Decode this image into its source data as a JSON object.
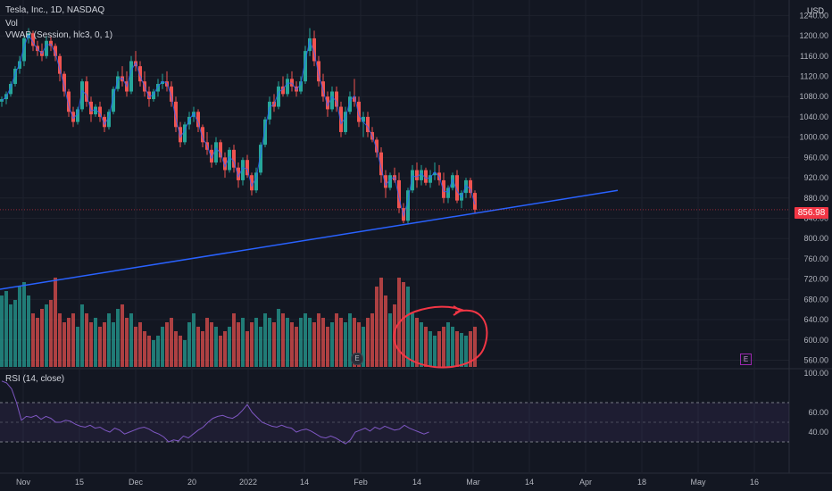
{
  "header": {
    "ticker_title": "Tesla, Inc., 1D, NASDAQ",
    "vol_title": "Vol",
    "vwap_title": "VWAP (Session, hlc3, 0, 1)",
    "currency": "USD"
  },
  "last_price_label": "856.98",
  "earnings_marker": "E",
  "dividend_marker": "E",
  "rsi": {
    "title": "RSI (14, close)",
    "ticks": [
      "100.00",
      "60.00",
      "40.00"
    ],
    "upper_band": 70,
    "lower_band": 30,
    "ylim": [
      0,
      100
    ],
    "values": [
      92,
      90,
      84,
      70,
      52,
      56,
      55,
      57,
      53,
      56,
      54,
      50,
      50,
      52,
      51,
      48,
      46,
      45,
      47,
      44,
      45,
      42,
      40,
      44,
      42,
      38,
      40,
      42,
      44,
      45,
      43,
      40,
      38,
      35,
      30,
      32,
      31,
      36,
      34,
      38,
      42,
      45,
      50,
      54,
      56,
      57,
      55,
      54,
      57,
      62,
      68,
      60,
      55,
      50,
      48,
      46,
      45,
      47,
      45,
      44,
      40,
      42,
      43,
      41,
      38,
      35,
      34,
      36,
      34,
      31,
      28,
      32,
      40,
      42,
      44,
      41,
      45,
      43,
      46,
      44,
      42,
      43,
      47,
      44,
      42,
      40,
      38,
      40
    ]
  },
  "colors": {
    "background": "#131722",
    "up": "#26a69a",
    "down": "#ef5350",
    "trendline": "#2962ff",
    "vwap": "#2962ff",
    "rsi_line": "#7e57c2",
    "rsi_band": "#7e57c2",
    "annotation": "#f23645",
    "grid": "#1e222d"
  },
  "chart_data": {
    "type": "candlestick",
    "title": "Tesla, Inc., 1D, NASDAQ",
    "x_ticks": [
      "Nov",
      "15",
      "Dec",
      "20",
      "2022",
      "14",
      "Feb",
      "14",
      "Mar",
      "14",
      "Apr",
      "18",
      "May",
      "16"
    ],
    "y_ticks": [
      1240,
      1200,
      1160,
      1120,
      1080,
      1040,
      1000,
      960,
      920,
      880,
      840,
      800,
      760,
      720,
      680,
      640,
      600,
      560
    ],
    "ylim": [
      545,
      1260
    ],
    "last_price": 856.98,
    "trendline": {
      "start": [
        "2021-10-27",
        700
      ],
      "end": [
        "2022-04-01",
        895
      ]
    },
    "candles": [
      [
        1070,
        1080,
        1060,
        1075
      ],
      [
        1075,
        1090,
        1065,
        1085
      ],
      [
        1085,
        1110,
        1080,
        1105
      ],
      [
        1105,
        1140,
        1100,
        1135
      ],
      [
        1135,
        1160,
        1125,
        1150
      ],
      [
        1150,
        1200,
        1140,
        1195
      ],
      [
        1195,
        1215,
        1185,
        1205
      ],
      [
        1205,
        1210,
        1170,
        1180
      ],
      [
        1180,
        1190,
        1160,
        1170
      ],
      [
        1170,
        1185,
        1150,
        1160
      ],
      [
        1160,
        1200,
        1155,
        1190
      ],
      [
        1190,
        1200,
        1170,
        1180
      ],
      [
        1180,
        1185,
        1150,
        1160
      ],
      [
        1160,
        1165,
        1110,
        1125
      ],
      [
        1125,
        1130,
        1080,
        1090
      ],
      [
        1090,
        1095,
        1040,
        1050
      ],
      [
        1050,
        1060,
        1020,
        1030
      ],
      [
        1030,
        1060,
        1025,
        1055
      ],
      [
        1055,
        1115,
        1050,
        1110
      ],
      [
        1110,
        1120,
        1060,
        1070
      ],
      [
        1070,
        1080,
        1030,
        1045
      ],
      [
        1045,
        1065,
        1040,
        1060
      ],
      [
        1060,
        1070,
        1030,
        1040
      ],
      [
        1040,
        1045,
        1010,
        1020
      ],
      [
        1020,
        1055,
        1015,
        1050
      ],
      [
        1050,
        1100,
        1045,
        1095
      ],
      [
        1095,
        1130,
        1090,
        1120
      ],
      [
        1120,
        1140,
        1100,
        1110
      ],
      [
        1110,
        1130,
        1080,
        1090
      ],
      [
        1090,
        1160,
        1085,
        1150
      ],
      [
        1150,
        1170,
        1130,
        1140
      ],
      [
        1140,
        1150,
        1100,
        1110
      ],
      [
        1110,
        1130,
        1080,
        1090
      ],
      [
        1090,
        1100,
        1060,
        1075
      ],
      [
        1075,
        1095,
        1070,
        1090
      ],
      [
        1090,
        1115,
        1080,
        1105
      ],
      [
        1105,
        1125,
        1095,
        1110
      ],
      [
        1110,
        1130,
        1090,
        1100
      ],
      [
        1100,
        1110,
        1060,
        1070
      ],
      [
        1070,
        1080,
        1010,
        1020
      ],
      [
        1020,
        1030,
        980,
        990
      ],
      [
        990,
        1030,
        985,
        1025
      ],
      [
        1025,
        1050,
        1015,
        1040
      ],
      [
        1040,
        1060,
        1030,
        1050
      ],
      [
        1050,
        1055,
        1010,
        1020
      ],
      [
        1020,
        1025,
        980,
        990
      ],
      [
        990,
        1010,
        965,
        975
      ],
      [
        975,
        985,
        940,
        950
      ],
      [
        950,
        1000,
        945,
        990
      ],
      [
        990,
        995,
        950,
        960
      ],
      [
        960,
        970,
        920,
        935
      ],
      [
        935,
        980,
        930,
        975
      ],
      [
        975,
        985,
        930,
        940
      ],
      [
        940,
        950,
        900,
        915
      ],
      [
        915,
        960,
        905,
        955
      ],
      [
        955,
        965,
        920,
        925
      ],
      [
        925,
        930,
        885,
        895
      ],
      [
        895,
        940,
        890,
        930
      ],
      [
        930,
        990,
        925,
        985
      ],
      [
        985,
        1040,
        980,
        1035
      ],
      [
        1035,
        1080,
        1025,
        1070
      ],
      [
        1070,
        1085,
        1050,
        1060
      ],
      [
        1060,
        1110,
        1055,
        1100
      ],
      [
        1100,
        1120,
        1080,
        1085
      ],
      [
        1085,
        1125,
        1080,
        1115
      ],
      [
        1115,
        1130,
        1090,
        1100
      ],
      [
        1100,
        1110,
        1080,
        1090
      ],
      [
        1090,
        1120,
        1085,
        1110
      ],
      [
        1110,
        1180,
        1105,
        1170
      ],
      [
        1170,
        1215,
        1160,
        1195
      ],
      [
        1195,
        1210,
        1140,
        1150
      ],
      [
        1150,
        1160,
        1100,
        1110
      ],
      [
        1110,
        1125,
        1070,
        1080
      ],
      [
        1080,
        1090,
        1040,
        1055
      ],
      [
        1055,
        1100,
        1050,
        1090
      ],
      [
        1090,
        1100,
        1050,
        1060
      ],
      [
        1060,
        1070,
        1000,
        1010
      ],
      [
        1010,
        1060,
        1005,
        1050
      ],
      [
        1050,
        1090,
        1045,
        1080
      ],
      [
        1080,
        1115,
        1060,
        1070
      ],
      [
        1070,
        1080,
        1020,
        1030
      ],
      [
        1030,
        1050,
        1000,
        1040
      ],
      [
        1040,
        1050,
        1000,
        1010
      ],
      [
        1010,
        1020,
        990,
        995
      ],
      [
        995,
        1000,
        960,
        970
      ],
      [
        970,
        980,
        910,
        925
      ],
      [
        925,
        935,
        880,
        900
      ],
      [
        900,
        930,
        895,
        925
      ],
      [
        925,
        940,
        910,
        915
      ],
      [
        915,
        930,
        850,
        860
      ],
      [
        860,
        870,
        830,
        835
      ],
      [
        835,
        900,
        830,
        895
      ],
      [
        895,
        945,
        890,
        935
      ],
      [
        935,
        950,
        900,
        915
      ],
      [
        915,
        945,
        905,
        935
      ],
      [
        935,
        940,
        905,
        910
      ],
      [
        910,
        935,
        900,
        925
      ],
      [
        925,
        950,
        915,
        930
      ],
      [
        930,
        945,
        905,
        915
      ],
      [
        915,
        930,
        870,
        880
      ],
      [
        880,
        905,
        870,
        900
      ],
      [
        900,
        930,
        895,
        925
      ],
      [
        925,
        935,
        870,
        875
      ],
      [
        875,
        895,
        860,
        890
      ],
      [
        890,
        920,
        880,
        915
      ],
      [
        915,
        920,
        880,
        890
      ],
      [
        890,
        895,
        850,
        857
      ]
    ],
    "volume_relative": [
      0.8,
      0.85,
      0.7,
      0.75,
      0.9,
      0.95,
      0.8,
      0.6,
      0.55,
      0.65,
      0.7,
      0.75,
      1.0,
      0.6,
      0.5,
      0.55,
      0.6,
      0.45,
      0.7,
      0.6,
      0.5,
      0.55,
      0.45,
      0.5,
      0.6,
      0.5,
      0.65,
      0.7,
      0.55,
      0.6,
      0.45,
      0.5,
      0.4,
      0.35,
      0.3,
      0.35,
      0.45,
      0.5,
      0.55,
      0.4,
      0.35,
      0.3,
      0.5,
      0.6,
      0.45,
      0.4,
      0.55,
      0.5,
      0.45,
      0.35,
      0.4,
      0.45,
      0.6,
      0.5,
      0.55,
      0.4,
      0.5,
      0.55,
      0.45,
      0.6,
      0.55,
      0.5,
      0.65,
      0.6,
      0.55,
      0.5,
      0.45,
      0.55,
      0.6,
      0.55,
      0.5,
      0.6,
      0.55,
      0.45,
      0.5,
      0.6,
      0.55,
      0.5,
      0.6,
      0.55,
      0.5,
      0.45,
      0.55,
      0.6,
      0.9,
      1.0,
      0.8,
      0.6,
      0.7,
      1.0,
      0.95,
      0.9,
      0.6,
      0.55,
      0.5,
      0.45,
      0.4,
      0.35,
      0.4,
      0.45,
      0.5,
      0.45,
      0.4,
      0.38,
      0.35,
      0.4,
      0.45
    ]
  }
}
